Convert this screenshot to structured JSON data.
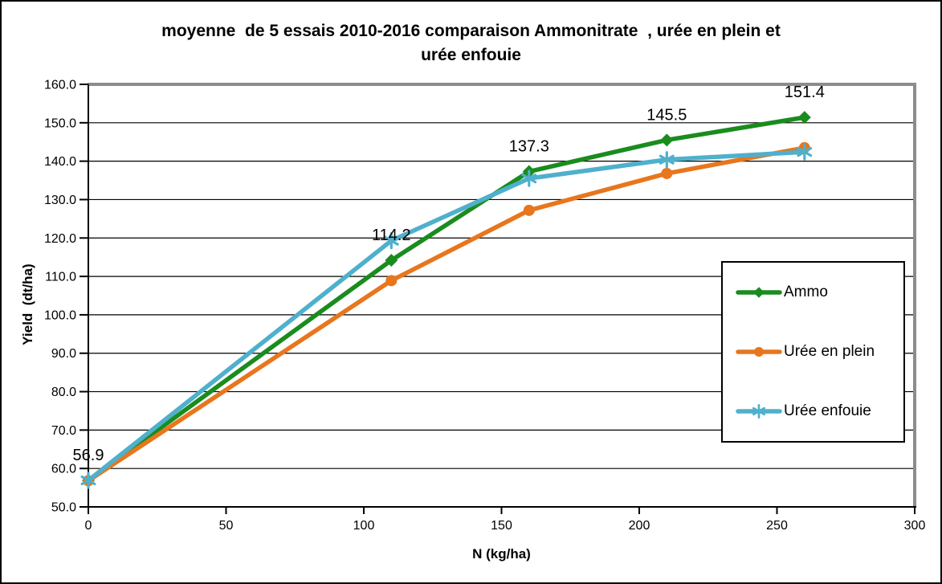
{
  "chart_data": {
    "type": "line",
    "title": "moyenne de 5 essais 2010-2016 comparaison Ammonitrate , urée en plein et urée enfouie",
    "title_lines": [
      "moyenne  de 5 essais 2010-2016 comparaison Ammonitrate  , urée en plein et",
      "urée enfouie"
    ],
    "xlabel": "N (kg/ha)",
    "ylabel": "Yield  (dt/ha)",
    "xlim": [
      0,
      300
    ],
    "ylim": [
      50,
      160
    ],
    "x_ticks": [
      0,
      50,
      100,
      150,
      200,
      250,
      300
    ],
    "y_ticks": [
      "50.0",
      "60.0",
      "70.0",
      "80.0",
      "90.0",
      "100.0",
      "110.0",
      "120.0",
      "130.0",
      "140.0",
      "150.0",
      "160.0"
    ],
    "grid": "horizontal-major",
    "legend_position": "middle-right",
    "plot_border_color": "#8c8c8c",
    "x": [
      0,
      110,
      160,
      210,
      260
    ],
    "series": [
      {
        "name": "Ammo",
        "color": "#1a8c1e",
        "marker": "diamond",
        "values": [
          56.9,
          114.2,
          137.3,
          145.5,
          151.4
        ],
        "data_labels": [
          "56.9",
          "114.2",
          "137.3",
          "145.5",
          "151.4"
        ]
      },
      {
        "name": "Urée en plein",
        "color": "#e8761d",
        "marker": "circle",
        "values": [
          56.8,
          108.9,
          127.2,
          136.8,
          143.5
        ]
      },
      {
        "name": "Urée enfouie",
        "color": "#4fb0cc",
        "marker": "asterisk",
        "values": [
          56.9,
          119.3,
          135.5,
          140.4,
          142.4
        ]
      }
    ]
  }
}
